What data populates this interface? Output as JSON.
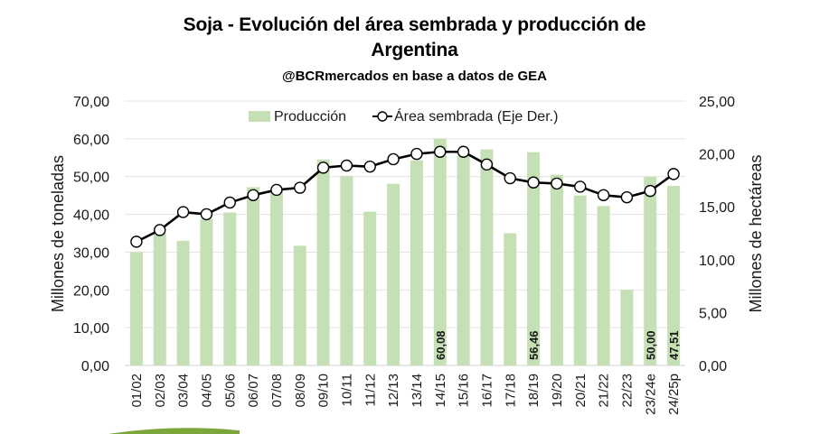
{
  "chart_data": {
    "type": "bar",
    "title": "Soja - Evolución del área sembrada y producción de Argentina",
    "title_lines": [
      "Soja - Evolución del área sembrada y producción de",
      "Argentina"
    ],
    "subtitle": "@BCRmercados en base a datos de GEA",
    "ylabel": "Millones de toneladas",
    "y2label": "Millones de hectáreas",
    "ylim": [
      0,
      70
    ],
    "y2lim": [
      0,
      25
    ],
    "yticks": [
      "0,00",
      "10,00",
      "20,00",
      "30,00",
      "40,00",
      "50,00",
      "60,00",
      "70,00"
    ],
    "y2ticks": [
      "0,00",
      "5,00",
      "10,00",
      "15,00",
      "20,00",
      "25,00"
    ],
    "grid": true,
    "legend_position": "top",
    "categories": [
      "01/02",
      "02/03",
      "03/04",
      "04/05",
      "05/06",
      "06/07",
      "07/08",
      "08/09",
      "09/10",
      "10/11",
      "11/12",
      "12/13",
      "13/14",
      "14/15",
      "15/16",
      "16/17",
      "17/18",
      "18/19",
      "19/20",
      "20/21",
      "21/22",
      "22/23",
      "23/24e",
      "24/25p"
    ],
    "series": [
      {
        "name": "Producción",
        "type": "bar",
        "axis": "left",
        "color": "#c5e0b4",
        "values": [
          30.0,
          35.0,
          33.0,
          38.8,
          40.5,
          47.2,
          46.5,
          31.7,
          54.5,
          50.2,
          40.7,
          48.1,
          54.3,
          60.08,
          55.5,
          57.2,
          35.0,
          56.46,
          50.5,
          45.0,
          42.2,
          20.0,
          50.0,
          47.51
        ]
      },
      {
        "name": "Área sembrada (Eje Der.)",
        "type": "line",
        "axis": "right",
        "color": "#000000",
        "marker_fill": "#ffffff",
        "values": [
          11.7,
          12.8,
          14.5,
          14.3,
          15.4,
          16.1,
          16.6,
          16.8,
          18.7,
          18.9,
          18.8,
          19.5,
          20.0,
          20.2,
          20.2,
          19.0,
          17.7,
          17.3,
          17.2,
          16.9,
          16.1,
          15.9,
          16.5,
          18.1
        ]
      }
    ],
    "data_labels": [
      {
        "category": "14/15",
        "text": "60,08"
      },
      {
        "category": "18/19",
        "text": "56,46"
      },
      {
        "category": "23/24e",
        "text": "50,00"
      },
      {
        "category": "24/25p",
        "text": "47,51"
      }
    ]
  },
  "decor": {
    "accent_color": "#7aa63a"
  }
}
